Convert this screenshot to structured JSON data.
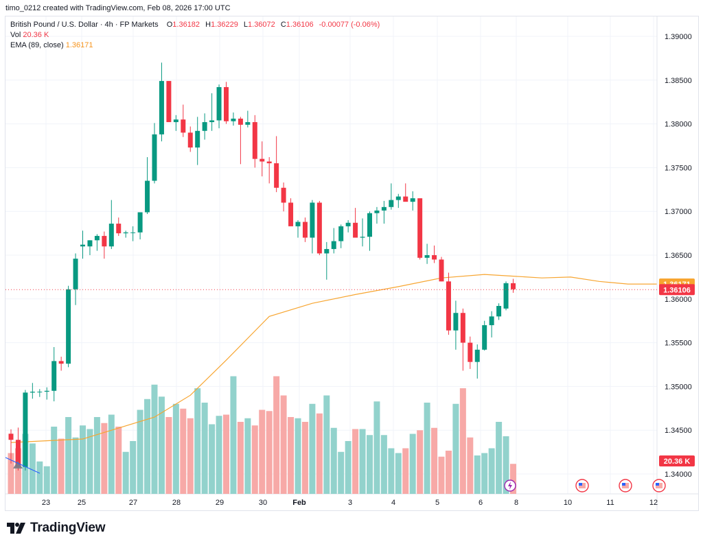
{
  "header": {
    "caption": "timo_0212 created with TradingView.com, Feb 08, 2026 17:00 UTC"
  },
  "legend": {
    "symbol": "British Pound / U.S. Dollar · 4h · FP Markets",
    "open_label": "O",
    "open": "1.36182",
    "high_label": "H",
    "high": "1.36229",
    "low_label": "L",
    "low": "1.36072",
    "close_label": "C",
    "close": "1.36106",
    "change": "-0.00077 (-0.06%)",
    "vol_label": "Vol",
    "vol": "20.36 K",
    "ema_label": "EMA (89, close)",
    "ema": "1.36171"
  },
  "footer": {
    "brand": "TradingView"
  },
  "chart_data": {
    "type": "candlestick",
    "title": "British Pound / U.S. Dollar · 4h · FP Markets",
    "y_axis": {
      "min": 1.3385,
      "max": 1.3925,
      "ticks": [
        "1.39000",
        "1.38500",
        "1.38000",
        "1.37500",
        "1.37000",
        "1.36500",
        "1.36000",
        "1.35500",
        "1.35000",
        "1.34500",
        "1.34000"
      ]
    },
    "x_axis": {
      "tick_labels": [
        "23",
        "25",
        "27",
        "28",
        "29",
        "30",
        "Feb",
        "3",
        "4",
        "5",
        "6",
        "8",
        "10",
        "11",
        "12"
      ]
    },
    "current_price": {
      "ema": "1.36171",
      "close": "1.36106",
      "volume": "20.36 K"
    },
    "colors": {
      "up": "#089981",
      "down": "#f23645",
      "ema": "#f7a530",
      "vol_up": "#92d2cc",
      "vol_down": "#f7a9a7"
    },
    "candles": [
      {
        "o": 1.3446,
        "h": 1.3451,
        "l": 1.3412,
        "c": 1.3439
      },
      {
        "o": 1.3439,
        "h": 1.3453,
        "l": 1.3404,
        "c": 1.3408
      },
      {
        "o": 1.3408,
        "h": 1.3496,
        "l": 1.3404,
        "c": 1.3493
      },
      {
        "o": 1.3493,
        "h": 1.3504,
        "l": 1.3486,
        "c": 1.3494
      },
      {
        "o": 1.3494,
        "h": 1.3497,
        "l": 1.3488,
        "c": 1.3494
      },
      {
        "o": 1.3494,
        "h": 1.3499,
        "l": 1.3485,
        "c": 1.3495
      },
      {
        "o": 1.3495,
        "h": 1.3545,
        "l": 1.3483,
        "c": 1.3529
      },
      {
        "o": 1.3529,
        "h": 1.3534,
        "l": 1.3518,
        "c": 1.3526
      },
      {
        "o": 1.3526,
        "h": 1.3615,
        "l": 1.3522,
        "c": 1.3611
      },
      {
        "o": 1.3611,
        "h": 1.3652,
        "l": 1.3593,
        "c": 1.3646
      },
      {
        "o": 1.366,
        "h": 1.3678,
        "l": 1.3646,
        "c": 1.3662
      },
      {
        "o": 1.366,
        "h": 1.3667,
        "l": 1.365,
        "c": 1.3667
      },
      {
        "o": 1.3667,
        "h": 1.3674,
        "l": 1.3655,
        "c": 1.3672
      },
      {
        "o": 1.3672,
        "h": 1.3677,
        "l": 1.3646,
        "c": 1.366
      },
      {
        "o": 1.366,
        "h": 1.3713,
        "l": 1.3657,
        "c": 1.3686
      },
      {
        "o": 1.3686,
        "h": 1.3693,
        "l": 1.3672,
        "c": 1.3675
      },
      {
        "o": 1.3675,
        "h": 1.3678,
        "l": 1.367,
        "c": 1.3676
      },
      {
        "o": 1.3676,
        "h": 1.3683,
        "l": 1.3666,
        "c": 1.3676
      },
      {
        "o": 1.3676,
        "h": 1.3698,
        "l": 1.3668,
        "c": 1.3699
      },
      {
        "o": 1.3699,
        "h": 1.3762,
        "l": 1.3697,
        "c": 1.3735
      },
      {
        "o": 1.3735,
        "h": 1.3801,
        "l": 1.3732,
        "c": 1.3788
      },
      {
        "o": 1.3788,
        "h": 1.387,
        "l": 1.378,
        "c": 1.3849
      },
      {
        "o": 1.3849,
        "h": 1.3849,
        "l": 1.3805,
        "c": 1.3802
      },
      {
        "o": 1.3802,
        "h": 1.381,
        "l": 1.3792,
        "c": 1.3805
      },
      {
        "o": 1.3805,
        "h": 1.3822,
        "l": 1.3785,
        "c": 1.379
      },
      {
        "o": 1.379,
        "h": 1.3797,
        "l": 1.3768,
        "c": 1.3773
      },
      {
        "o": 1.3773,
        "h": 1.3808,
        "l": 1.3753,
        "c": 1.3792
      },
      {
        "o": 1.3792,
        "h": 1.3812,
        "l": 1.3782,
        "c": 1.3802
      },
      {
        "o": 1.3802,
        "h": 1.3835,
        "l": 1.3792,
        "c": 1.3804
      },
      {
        "o": 1.3804,
        "h": 1.3845,
        "l": 1.3795,
        "c": 1.3842
      },
      {
        "o": 1.3842,
        "h": 1.3848,
        "l": 1.38,
        "c": 1.3803
      },
      {
        "o": 1.3803,
        "h": 1.3813,
        "l": 1.3798,
        "c": 1.3806
      },
      {
        "o": 1.3806,
        "h": 1.3808,
        "l": 1.3754,
        "c": 1.3799
      },
      {
        "o": 1.3799,
        "h": 1.3815,
        "l": 1.3796,
        "c": 1.3802
      },
      {
        "o": 1.3802,
        "h": 1.381,
        "l": 1.375,
        "c": 1.376
      },
      {
        "o": 1.376,
        "h": 1.378,
        "l": 1.374,
        "c": 1.3757
      },
      {
        "o": 1.3757,
        "h": 1.3762,
        "l": 1.3732,
        "c": 1.3755
      },
      {
        "o": 1.3755,
        "h": 1.3786,
        "l": 1.3722,
        "c": 1.3727
      },
      {
        "o": 1.3727,
        "h": 1.3733,
        "l": 1.37,
        "c": 1.371
      },
      {
        "o": 1.371,
        "h": 1.3715,
        "l": 1.3685,
        "c": 1.3683
      },
      {
        "o": 1.3683,
        "h": 1.369,
        "l": 1.367,
        "c": 1.3688
      },
      {
        "o": 1.3688,
        "h": 1.3693,
        "l": 1.3665,
        "c": 1.367
      },
      {
        "o": 1.367,
        "h": 1.3713,
        "l": 1.3652,
        "c": 1.371
      },
      {
        "o": 1.371,
        "h": 1.3712,
        "l": 1.365,
        "c": 1.3652
      },
      {
        "o": 1.3652,
        "h": 1.3665,
        "l": 1.3622,
        "c": 1.3657
      },
      {
        "o": 1.3657,
        "h": 1.3681,
        "l": 1.3652,
        "c": 1.3666
      },
      {
        "o": 1.3666,
        "h": 1.3685,
        "l": 1.3658,
        "c": 1.3683
      },
      {
        "o": 1.3683,
        "h": 1.369,
        "l": 1.3676,
        "c": 1.3687
      },
      {
        "o": 1.3687,
        "h": 1.3704,
        "l": 1.3671,
        "c": 1.367
      },
      {
        "o": 1.367,
        "h": 1.3692,
        "l": 1.366,
        "c": 1.3671
      },
      {
        "o": 1.3671,
        "h": 1.37,
        "l": 1.3655,
        "c": 1.3698
      },
      {
        "o": 1.3698,
        "h": 1.3705,
        "l": 1.3686,
        "c": 1.3701
      },
      {
        "o": 1.3701,
        "h": 1.3712,
        "l": 1.3686,
        "c": 1.3705
      },
      {
        "o": 1.3705,
        "h": 1.3732,
        "l": 1.3702,
        "c": 1.3713
      },
      {
        "o": 1.3713,
        "h": 1.372,
        "l": 1.3704,
        "c": 1.3717
      },
      {
        "o": 1.3717,
        "h": 1.3732,
        "l": 1.3714,
        "c": 1.3711
      },
      {
        "o": 1.3711,
        "h": 1.3723,
        "l": 1.3701,
        "c": 1.3715
      },
      {
        "o": 1.3715,
        "h": 1.3715,
        "l": 1.3645,
        "c": 1.3647
      },
      {
        "o": 1.3647,
        "h": 1.3663,
        "l": 1.364,
        "c": 1.365
      },
      {
        "o": 1.365,
        "h": 1.3661,
        "l": 1.3641,
        "c": 1.3645
      },
      {
        "o": 1.3645,
        "h": 1.3648,
        "l": 1.362,
        "c": 1.362
      },
      {
        "o": 1.362,
        "h": 1.363,
        "l": 1.3559,
        "c": 1.3564
      },
      {
        "o": 1.3564,
        "h": 1.3598,
        "l": 1.3542,
        "c": 1.3584
      },
      {
        "o": 1.3584,
        "h": 1.3589,
        "l": 1.3518,
        "c": 1.355
      },
      {
        "o": 1.355,
        "h": 1.3557,
        "l": 1.352,
        "c": 1.3528
      },
      {
        "o": 1.3528,
        "h": 1.3548,
        "l": 1.3509,
        "c": 1.3542
      },
      {
        "o": 1.3542,
        "h": 1.3575,
        "l": 1.3541,
        "c": 1.357
      },
      {
        "o": 1.357,
        "h": 1.3586,
        "l": 1.3556,
        "c": 1.358
      },
      {
        "o": 1.358,
        "h": 1.3595,
        "l": 1.3576,
        "c": 1.3592
      },
      {
        "o": 1.3589,
        "h": 1.362,
        "l": 1.3587,
        "c": 1.3618
      },
      {
        "o": 1.3618,
        "h": 1.3623,
        "l": 1.3607,
        "c": 1.3611
      }
    ],
    "volume": [
      0.34,
      0.38,
      0.5,
      0.42,
      0.27,
      0.23,
      0.56,
      0.46,
      0.64,
      0.47,
      0.57,
      0.54,
      0.64,
      0.59,
      0.66,
      0.56,
      0.35,
      0.44,
      0.7,
      0.79,
      0.91,
      0.81,
      0.64,
      0.75,
      0.71,
      0.63,
      0.88,
      0.76,
      0.58,
      0.65,
      0.66,
      0.98,
      0.6,
      0.63,
      0.57,
      0.7,
      0.69,
      0.98,
      0.82,
      0.64,
      0.63,
      0.6,
      0.75,
      0.67,
      0.82,
      0.55,
      0.35,
      0.44,
      0.54,
      0.54,
      0.49,
      0.77,
      0.49,
      0.38,
      0.34,
      0.38,
      0.5,
      0.53,
      0.76,
      0.55,
      0.31,
      0.36,
      0.75,
      0.88,
      0.47,
      0.32,
      0.34,
      0.38,
      0.6,
      0.48,
      0.25
    ],
    "ema": [
      [
        0,
        1.3436
      ],
      [
        10,
        1.344
      ],
      [
        20,
        1.3465
      ],
      [
        25,
        1.349
      ],
      [
        30,
        1.353
      ],
      [
        36,
        1.358
      ],
      [
        42,
        1.3595
      ],
      [
        48,
        1.3605
      ],
      [
        54,
        1.3614
      ],
      [
        60,
        1.3624
      ],
      [
        66,
        1.3628
      ],
      [
        70,
        1.3626
      ],
      [
        74,
        1.3624
      ],
      [
        78,
        1.3625
      ],
      [
        82,
        1.362
      ],
      [
        86,
        1.3617
      ],
      [
        90,
        1.3617
      ]
    ]
  }
}
